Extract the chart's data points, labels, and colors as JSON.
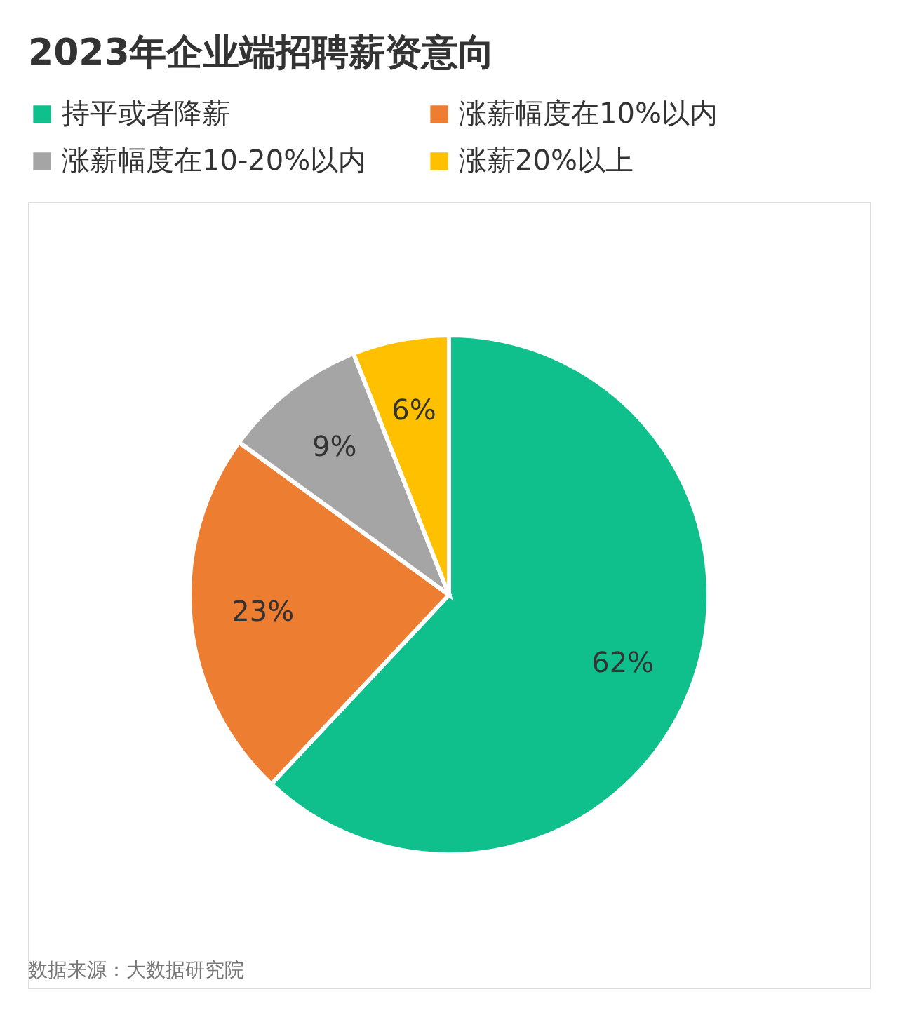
{
  "chart_data": {
    "type": "pie",
    "title": "2023年企业端招聘薪资意向",
    "categories": [
      "持平或者降薪",
      "涨薪幅度在10%以内",
      "涨薪幅度在10-20%以内",
      "涨薪20%以上"
    ],
    "values": [
      62,
      23,
      9,
      6
    ],
    "colors": [
      "#10c08c",
      "#ed7d31",
      "#a5a5a5",
      "#ffc000"
    ],
    "value_labels": [
      "62%",
      "23%",
      "9%",
      "6%"
    ],
    "legend": "top",
    "annotations": [
      "数据来源：大数据研究院"
    ]
  }
}
